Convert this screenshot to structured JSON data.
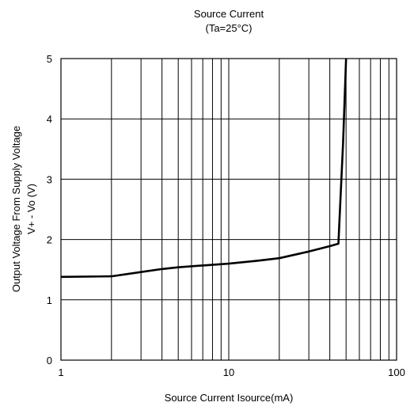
{
  "chart_data": {
    "type": "line",
    "title": "Source Current",
    "subtitle": "(Ta=25°C)",
    "xlabel": "Source Current Isource(mA)",
    "ylabel_line1": "Output Voltage From Supply Voltage",
    "ylabel_line2": "V+ - Vo  (V)",
    "xscale": "log",
    "xlim": [
      1,
      100
    ],
    "ylim": [
      0,
      5
    ],
    "grid": true,
    "x_tick_labels": [
      "1",
      "10",
      "100"
    ],
    "y_tick_labels": [
      "0",
      "1",
      "2",
      "3",
      "4",
      "5"
    ],
    "series": [
      {
        "x": [
          1,
          2,
          3,
          4,
          5,
          7,
          10,
          15,
          20,
          30,
          40,
          45,
          46,
          48,
          50
        ],
        "y": [
          1.38,
          1.39,
          1.46,
          1.51,
          1.54,
          1.57,
          1.6,
          1.65,
          1.69,
          1.8,
          1.89,
          1.93,
          2.5,
          3.6,
          5.0
        ]
      }
    ],
    "line_color": "#000000"
  }
}
